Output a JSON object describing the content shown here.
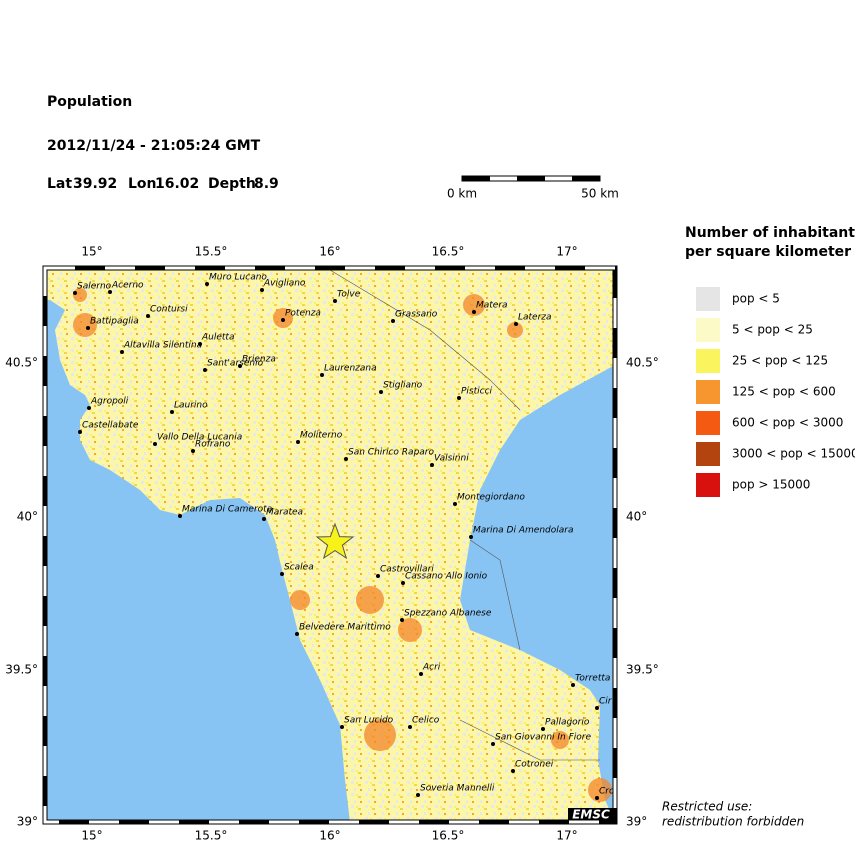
{
  "header": {
    "title": "Population",
    "datetime": "2012/11/24 - 21:05:24 GMT",
    "lat_label": "Lat",
    "lat": "39.92",
    "lon_label": "Lon",
    "lon": "16.02",
    "depth_label": "Depth",
    "depth": "8.9"
  },
  "scale_bar": {
    "start": "0 km",
    "end": "50 km"
  },
  "map": {
    "lon_ticks": [
      "15°",
      "15.5°",
      "16°",
      "16.5°",
      "17°"
    ],
    "lat_ticks": [
      "40.5°",
      "40°",
      "39.5°",
      "39°"
    ],
    "logo": "EMSC",
    "towns": [
      "Salerno",
      "Acerno",
      "Muro Lucano",
      "Avigliano",
      "Contursi",
      "Tolve",
      "Potenza",
      "Grassano",
      "Matera",
      "Laterza",
      "Battipaglia",
      "Auletta",
      "Altavilla Silentina",
      "Sant'arsenio",
      "Brienza",
      "Laurenzana",
      "Stigliano",
      "Pisticci",
      "Agropoli",
      "Laurino",
      "Castellabate",
      "Vallo Della Lucania",
      "Rofrano",
      "Moliterno",
      "San Chirico Raparo",
      "Valsinni",
      "Montegiordano",
      "Marina Di Camerota",
      "Maratea",
      "Marina Di Amendolara",
      "Scalea",
      "Castrovillari",
      "Cassano Allo Ionio",
      "Spezzano Albanese",
      "Belvedere Marittimo",
      "Acri",
      "Torretta",
      "Cir",
      "San Lucido",
      "Celico",
      "Pallagorio",
      "San Giovanni In Fiore",
      "Cotronei",
      "Soveria Mannelli",
      "Cro"
    ]
  },
  "legend": {
    "title": [
      "Number of inhabitants",
      "per square kilometer"
    ],
    "items": [
      {
        "label": "pop < 5",
        "color": "#e5e5e5"
      },
      {
        "label": "5 < pop < 25",
        "color": "#fcfac6"
      },
      {
        "label": "25 < pop < 125",
        "color": "#faf55e"
      },
      {
        "label": "125 < pop < 600",
        "color": "#f7962e"
      },
      {
        "label": "600 < pop < 3000",
        "color": "#f45a12"
      },
      {
        "label": "3000 < pop < 15000",
        "color": "#b3430f"
      },
      {
        "label": "pop > 15000",
        "color": "#d8110f"
      }
    ]
  },
  "notice": [
    "Restricted use:",
    "redistribution forbidden"
  ]
}
